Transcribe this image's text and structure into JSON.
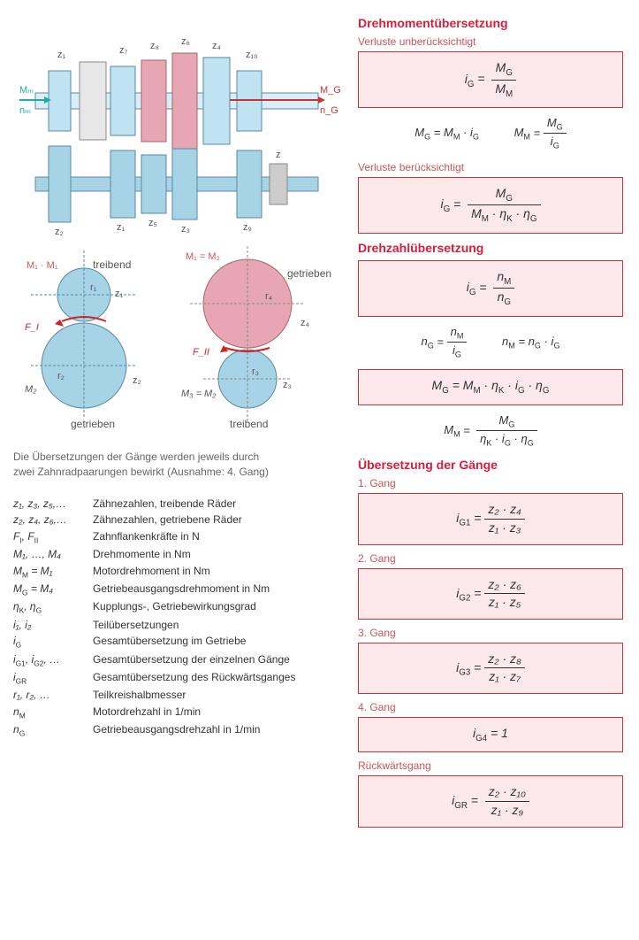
{
  "left": {
    "gear_diagram": {
      "z_labels_top": [
        "z₁",
        "z₇",
        "z₈",
        "z₆",
        "z₄",
        "z₁₀"
      ],
      "z_labels_bottom": [
        "z₂",
        "z₁",
        "z₅",
        "z₃",
        "z₉"
      ],
      "input_labels": [
        "Mₘ",
        "nₘ"
      ],
      "output_labels": [
        "M_G",
        "n_G"
      ],
      "z_extra": "z",
      "colors": {
        "top_shaft": "#d9eef7",
        "top_gear": "#bfe3f0",
        "highlight": "#e7a6b3",
        "bottom_shaft": "#a7d3e6",
        "outline": "#5a5a5a"
      }
    },
    "circle_diagram": {
      "left": {
        "top_label": "M₁ · M₁",
        "driving": "treibend",
        "z1": "z₁",
        "r1": "r₁",
        "r2": "r₂",
        "M2": "M₂",
        "z2": "z₂",
        "getrieben": "getrieben",
        "F": "F_I"
      },
      "right": {
        "top_label": "M₁ = M₂",
        "getrieben": "getrieben",
        "r4": "r₄",
        "z4": "z₄",
        "F": "F_II",
        "r3": "r₃",
        "z3": "z₃",
        "M3": "M₃ = M₂",
        "treibend": "treibend"
      },
      "colors": {
        "blue": "#a7d3e6",
        "pink": "#e7a6b3",
        "outline": "#5a8aa0",
        "red": "#c22"
      }
    },
    "caption_line1": "Die Übersetzungen der Gänge werden jeweils durch",
    "caption_line2": "zwei Zahnradpaarungen bewirkt (Ausnahme: 4. Gang)",
    "legend": [
      {
        "sym": "z₁, z₃, z₅,…",
        "desc": "Zähnezahlen, treibende Räder"
      },
      {
        "sym": "z₂, z₄, z₆,…",
        "desc": "Zähnezahlen, getriebene Räder"
      },
      {
        "sym": "F_I, F_II",
        "desc": "Zahnflankenkräfte in N"
      },
      {
        "sym": "M₁, …, M₄",
        "desc": "Drehmomente in Nm"
      },
      {
        "sym": "M_M = M₁",
        "desc": "Motordrehmoment in Nm"
      },
      {
        "sym": "M_G = M₄",
        "desc": "Getriebeausgangsdrehmoment in Nm"
      },
      {
        "sym": "η_K, η_G",
        "desc": "Kupplungs-, Getriebewirkungsgrad"
      },
      {
        "sym": "i₁, i₂",
        "desc": "Teilübersetzungen"
      },
      {
        "sym": "i_G",
        "desc": "Gesamtübersetzung im Getriebe"
      },
      {
        "sym": "i_G1, i_G2, …",
        "desc": "Gesamtübersetzung der einzelnen Gänge"
      },
      {
        "sym": "i_GR",
        "desc": "Gesamtübersetzung des Rückwärtsganges"
      },
      {
        "sym": "r₁, r₂, …",
        "desc": "Teilkreishalbmesser"
      },
      {
        "sym": "n_M",
        "desc": "Motordrehzahl in 1/min"
      },
      {
        "sym": "n_G",
        "desc": "Getriebeausgangsdrehzahl in 1/min"
      }
    ]
  },
  "right": {
    "section1_heading": "Drehmomentübersetzung",
    "sub1a": "Verluste unberücksichtigt",
    "f1": {
      "lhs": "i_G",
      "num": "M_G",
      "den": "M_M"
    },
    "f1b": {
      "left_lhs": "M_G",
      "left_rhs": "M_M · i_G",
      "right_lhs": "M_M",
      "right_num": "M_G",
      "right_den": "i_G"
    },
    "sub1b": "Verluste berücksichtigt",
    "f2": {
      "lhs": "i_G",
      "num": "M_G",
      "den": "M_M · η_K · η_G"
    },
    "section2_heading": "Drehzahlübersetzung",
    "f3": {
      "lhs": "i_G",
      "num": "n_M",
      "den": "n_G"
    },
    "f3b": {
      "left_lhs": "n_G",
      "left_num": "n_M",
      "left_den": "i_G",
      "right_lhs": "n_M",
      "right_rhs": "n_G · i_G"
    },
    "f4": {
      "text": "M_G  =  M_M · η_K · i_G · η_G"
    },
    "f5": {
      "lhs": "M_M",
      "num": "M_G",
      "den": "η_K · i_G · η_G"
    },
    "section3_heading": "Übersetzung der Gänge",
    "gears": [
      {
        "label": "1. Gang",
        "lhs": "i_G1",
        "num": "z₂ · z₄",
        "den": "z₁ · z₃"
      },
      {
        "label": "2. Gang",
        "lhs": "i_G2",
        "num": "z₂ · z₆",
        "den": "z₁ · z₅"
      },
      {
        "label": "3. Gang",
        "lhs": "i_G3",
        "num": "z₂ · z₈",
        "den": "z₁ · z₇"
      },
      {
        "label": "4. Gang",
        "lhs": "i_G4",
        "plain": "1"
      }
    ],
    "reverse_label": "Rückwärtsgang",
    "reverse": {
      "lhs": "i_GR",
      "num": "z₂ · z₁₀",
      "den": "z₁ · z₉"
    }
  }
}
